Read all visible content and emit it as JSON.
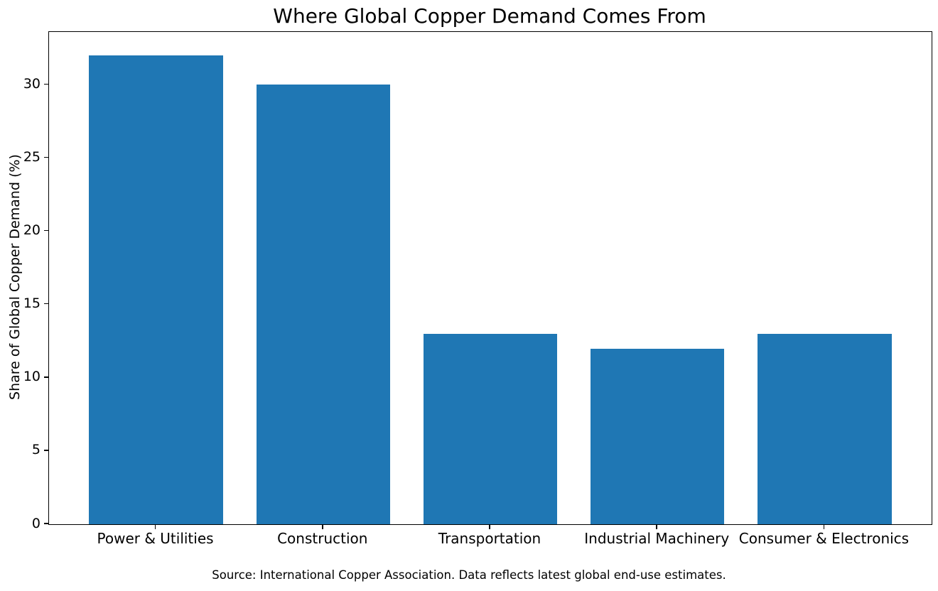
{
  "chart_data": {
    "type": "bar",
    "title": "Where Global Copper Demand Comes From",
    "categories": [
      "Power & Utilities",
      "Construction",
      "Transportation",
      "Industrial Machinery",
      "Consumer & Electronics"
    ],
    "values": [
      32,
      30,
      13,
      12,
      13
    ],
    "xlabel": "",
    "ylabel": "Share of Global Copper Demand (%)",
    "ylim": [
      0,
      33.6
    ],
    "yticks": [
      0,
      5,
      10,
      15,
      20,
      25,
      30
    ],
    "bar_width_fraction": 0.8,
    "grid": false,
    "legend": false,
    "source_note": "Source: International Copper Association. Data reflects latest global end-use estimates."
  },
  "colors": {
    "bar": "#1f77b4",
    "axis": "#000000",
    "text": "#000000",
    "background": "#ffffff"
  }
}
